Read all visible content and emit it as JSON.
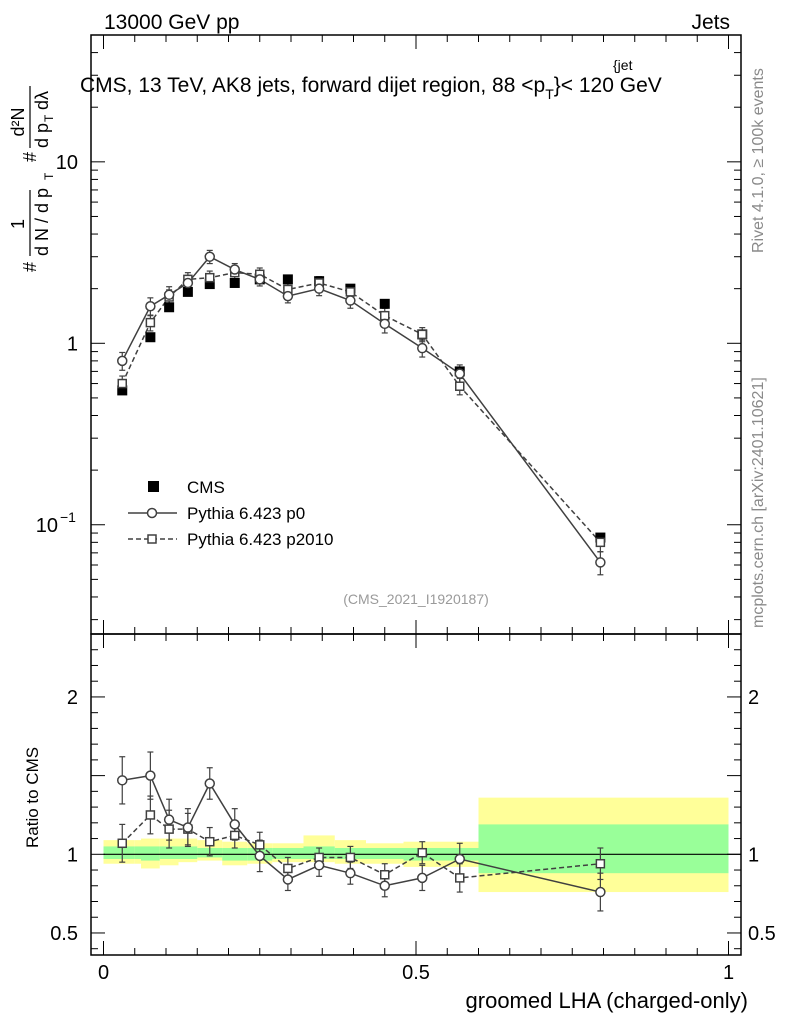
{
  "header": {
    "left": "13000 GeV pp",
    "right": "Jets"
  },
  "side_labels": {
    "top": "Rivet 4.1.0, ≥ 100k events",
    "bottom": "mcplots.cern.ch [arXiv:2401.10621]"
  },
  "analysis_ref": "(CMS_2021_I1920187)",
  "colors": {
    "data": "#000000",
    "p0": "#404040",
    "p2010": "#404040",
    "band_inner": "#99ff99",
    "band_outer": "#ffff99",
    "axis": "#000000"
  },
  "chart_data": [
    {
      "type": "scatter",
      "title_parts": {
        "main": "CMS, 13 TeV, AK8 jets, forward dijet region, 88 <p",
        "sub": "T",
        "sup": "{jet",
        "tail": "}< 120 GeV"
      },
      "ylabel_parts": {
        "hash": "#",
        "frac1_num": "1",
        "frac1_den": "d N / d p",
        "frac1_den_sub": "T",
        "hash2": "#",
        "frac2_num": "d²N",
        "frac2_den": "d p",
        "frac2_den_sub": "T",
        "frac2_den_tail": "dλ"
      },
      "yscale": "log",
      "ylim": [
        0.025,
        50
      ],
      "xlim": [
        -0.02,
        1.02
      ],
      "yticks": [
        {
          "v": 0.1,
          "label": "10",
          "sup": "−1"
        },
        {
          "v": 1,
          "label": "1",
          "sup": ""
        },
        {
          "v": 10,
          "label": "10",
          "sup": ""
        }
      ],
      "legend_position": "center-left",
      "series": [
        {
          "name": "CMS",
          "style": "filled-square",
          "x": [
            0.03,
            0.075,
            0.105,
            0.135,
            0.17,
            0.21,
            0.25,
            0.295,
            0.345,
            0.395,
            0.45,
            0.51,
            0.57,
            0.795
          ],
          "y": [
            0.55,
            1.08,
            1.58,
            1.92,
            2.12,
            2.15,
            2.25,
            2.25,
            2.2,
            2.0,
            1.65,
            1.12,
            0.7,
            0.085
          ]
        },
        {
          "name": "Pythia 6.423 p0",
          "style": "open-circle-solid",
          "x": [
            0.03,
            0.075,
            0.105,
            0.135,
            0.17,
            0.21,
            0.25,
            0.295,
            0.345,
            0.395,
            0.45,
            0.51,
            0.57,
            0.795
          ],
          "y": [
            0.8,
            1.6,
            1.85,
            2.15,
            3.0,
            2.55,
            2.25,
            1.82,
            2.0,
            1.72,
            1.28,
            0.94,
            0.68,
            0.062
          ],
          "err": [
            0.09,
            0.18,
            0.2,
            0.22,
            0.25,
            0.2,
            0.18,
            0.15,
            0.17,
            0.16,
            0.14,
            0.1,
            0.08,
            0.009
          ]
        },
        {
          "name": "Pythia 6.423 p2010",
          "style": "open-square-dashed",
          "x": [
            0.03,
            0.075,
            0.105,
            0.135,
            0.17,
            0.21,
            0.25,
            0.295,
            0.345,
            0.395,
            0.45,
            0.51,
            0.57,
            0.795
          ],
          "y": [
            0.6,
            1.3,
            1.8,
            2.25,
            2.3,
            2.45,
            2.4,
            1.98,
            2.15,
            1.92,
            1.42,
            1.12,
            0.58,
            0.08
          ],
          "err": [
            0.06,
            0.13,
            0.17,
            0.2,
            0.2,
            0.2,
            0.2,
            0.17,
            0.18,
            0.17,
            0.14,
            0.1,
            0.06,
            0.009
          ]
        }
      ]
    },
    {
      "type": "scatter",
      "ylabel": "Ratio to CMS",
      "xlabel": "groomed LHA (charged-only)",
      "ylim": [
        0.36,
        2.4
      ],
      "xlim": [
        -0.02,
        1.02
      ],
      "yticks": [
        {
          "v": 0.5,
          "label": "0.5"
        },
        {
          "v": 1,
          "label": "1"
        },
        {
          "v": 2,
          "label": "2"
        }
      ],
      "xticks": [
        {
          "v": 0,
          "label": "0"
        },
        {
          "v": 0.5,
          "label": "0.5"
        },
        {
          "v": 1,
          "label": "1"
        }
      ],
      "bands": {
        "edges": [
          0.0,
          0.05,
          0.06,
          0.09,
          0.12,
          0.15,
          0.19,
          0.23,
          0.27,
          0.32,
          0.37,
          0.42,
          0.48,
          0.54,
          0.6,
          1.0
        ],
        "outer_lo": [
          0.94,
          0.94,
          0.91,
          0.93,
          0.95,
          0.96,
          0.93,
          0.94,
          0.95,
          0.95,
          0.94,
          0.94,
          0.92,
          0.92,
          0.76
        ],
        "outer_hi": [
          1.09,
          1.09,
          1.1,
          1.1,
          1.1,
          1.09,
          1.08,
          1.07,
          1.07,
          1.12,
          1.09,
          1.07,
          1.08,
          1.08,
          1.36
        ],
        "inner_lo": [
          0.97,
          0.97,
          0.96,
          0.97,
          0.97,
          0.98,
          0.96,
          0.96,
          0.97,
          0.97,
          0.97,
          0.97,
          0.96,
          0.96,
          0.88
        ],
        "inner_hi": [
          1.05,
          1.05,
          1.05,
          1.05,
          1.05,
          1.04,
          1.04,
          1.04,
          1.04,
          1.05,
          1.04,
          1.04,
          1.04,
          1.04,
          1.19
        ]
      },
      "series": [
        {
          "name": "Pythia 6.423 p0",
          "style": "open-circle-solid",
          "x": [
            0.03,
            0.075,
            0.105,
            0.135,
            0.17,
            0.21,
            0.25,
            0.295,
            0.345,
            0.395,
            0.45,
            0.51,
            0.57,
            0.795
          ],
          "y": [
            1.47,
            1.5,
            1.22,
            1.17,
            1.45,
            1.19,
            0.99,
            0.84,
            0.93,
            0.88,
            0.8,
            0.85,
            0.97,
            0.76
          ],
          "err": [
            0.15,
            0.15,
            0.13,
            0.12,
            0.1,
            0.1,
            0.1,
            0.07,
            0.07,
            0.07,
            0.07,
            0.08,
            0.1,
            0.12
          ]
        },
        {
          "name": "Pythia 6.423 p2010",
          "style": "open-square-dashed",
          "x": [
            0.03,
            0.075,
            0.105,
            0.135,
            0.17,
            0.21,
            0.25,
            0.295,
            0.345,
            0.395,
            0.45,
            0.51,
            0.57,
            0.795
          ],
          "y": [
            1.07,
            1.25,
            1.16,
            1.16,
            1.08,
            1.12,
            1.06,
            0.91,
            0.98,
            0.98,
            0.87,
            1.01,
            0.85,
            0.94
          ],
          "err": [
            0.12,
            0.12,
            0.12,
            0.1,
            0.09,
            0.08,
            0.08,
            0.07,
            0.06,
            0.07,
            0.07,
            0.07,
            0.09,
            0.1
          ]
        }
      ]
    }
  ],
  "legend": [
    {
      "label": "CMS"
    },
    {
      "label": "Pythia 6.423 p0"
    },
    {
      "label": "Pythia 6.423 p2010"
    }
  ]
}
